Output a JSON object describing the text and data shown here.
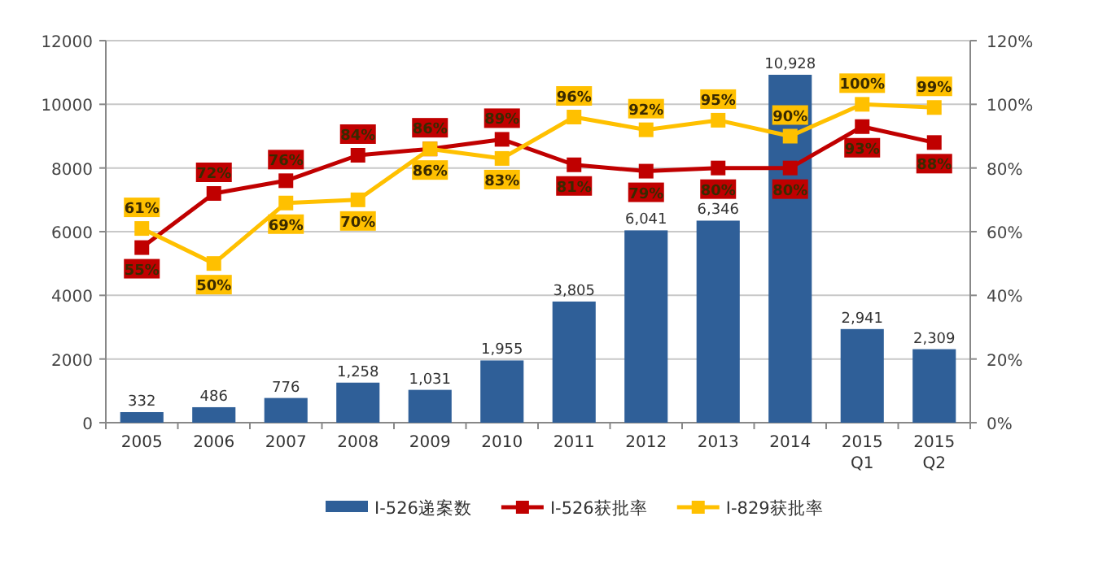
{
  "chart_data": {
    "type": "bar",
    "categories": [
      "2005",
      "2006",
      "2007",
      "2008",
      "2009",
      "2010",
      "2011",
      "2012",
      "2013",
      "2014",
      "2015 Q1",
      "2015 Q2"
    ],
    "series": [
      {
        "name": "I-526递案数",
        "color": "#2f5f98",
        "values": [
          332,
          486,
          776,
          1258,
          1031,
          1955,
          3805,
          6041,
          6346,
          10928,
          2941,
          2309
        ],
        "value_labels": [
          "332",
          "486",
          "776",
          "1,258",
          "1,031",
          "1,955",
          "3,805",
          "6,041",
          "6,346",
          "10,928",
          "2,941",
          "2,309"
        ]
      },
      {
        "name": "I-526获批率",
        "type": "line",
        "axis": "y2",
        "color": "#c00000",
        "marker": "square",
        "values": [
          55,
          72,
          76,
          84,
          86,
          89,
          81,
          79,
          80,
          80,
          93,
          88
        ],
        "value_labels": [
          "55%",
          "72%",
          "76%",
          "84%",
          "86%",
          "89%",
          "81%",
          "79%",
          "80%",
          "80%",
          "93%",
          "88%"
        ]
      },
      {
        "name": "I-829获批率",
        "type": "line",
        "axis": "y2",
        "color": "#ffc000",
        "marker": "square",
        "values": [
          61,
          50,
          69,
          70,
          86,
          83,
          96,
          92,
          95,
          90,
          100,
          99
        ],
        "value_labels": [
          "61%",
          "50%",
          "69%",
          "70%",
          "86%",
          "83%",
          "96%",
          "92%",
          "95%",
          "90%",
          "100%",
          "99%"
        ]
      }
    ],
    "ylim": [
      0,
      12000
    ],
    "yticks": [
      0,
      2000,
      4000,
      6000,
      8000,
      10000,
      12000
    ],
    "y2lim": [
      0,
      120
    ],
    "y2ticks": [
      {
        "value": 0,
        "label": "0%"
      },
      {
        "value": 20,
        "label": "20%"
      },
      {
        "value": 40,
        "label": "40%"
      },
      {
        "value": 60,
        "label": "60%"
      },
      {
        "value": 80,
        "label": "80%"
      },
      {
        "value": 100,
        "label": "100%"
      },
      {
        "value": 120,
        "label": "120%"
      }
    ],
    "grid": "y",
    "legend": "bottom"
  }
}
